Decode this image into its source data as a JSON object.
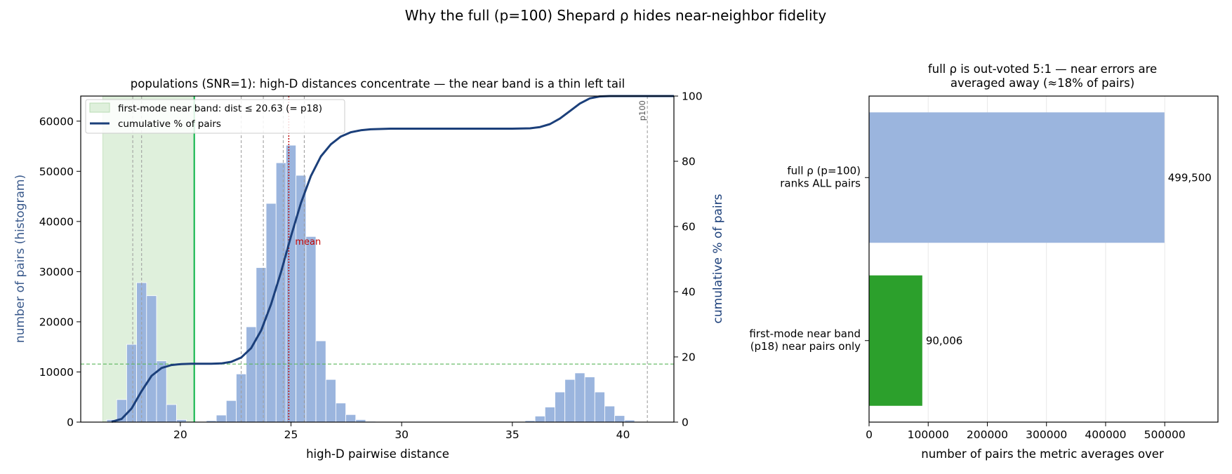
{
  "figure": {
    "suptitle": "Why the full (p=100) Shepard ρ hides near-neighbor fidelity"
  },
  "colors": {
    "hist": "#9bb5de",
    "cumulative": "#1b3f7a",
    "band_fill": "#dff0dc",
    "band_edge": "#1db954",
    "ref_line": "#5bb55b",
    "mean_line": "#c00000",
    "bar_full": "#9bb5de",
    "bar_near": "#2ca02c",
    "axis_label_left": "#3a5a8c"
  },
  "chart_data": [
    {
      "type": "bar",
      "subtype": "histogram_with_cumulative_line",
      "title": "populations (SNR=1): high-D distances concentrate — the near band is a thin left tail",
      "xlabel": "high-D pairwise distance",
      "ylabel": "number of pairs (histogram)",
      "y2label": "cumulative % of pairs",
      "xlim": [
        15.5,
        42.3
      ],
      "ylim": [
        0,
        65000
      ],
      "y2lim": [
        0,
        100
      ],
      "xticks": [
        20,
        25,
        30,
        35,
        40
      ],
      "yticks": [
        0,
        10000,
        20000,
        30000,
        40000,
        50000,
        60000
      ],
      "y2ticks": [
        0,
        20,
        40,
        60,
        80,
        100
      ],
      "bin_width": 0.45,
      "bins": [
        {
          "x": 16.9,
          "count": 500
        },
        {
          "x": 17.35,
          "count": 4500
        },
        {
          "x": 17.8,
          "count": 15500
        },
        {
          "x": 18.25,
          "count": 27800
        },
        {
          "x": 18.7,
          "count": 25200
        },
        {
          "x": 19.15,
          "count": 12200
        },
        {
          "x": 19.6,
          "count": 3500
        },
        {
          "x": 20.05,
          "count": 500
        },
        {
          "x": 21.4,
          "count": 300
        },
        {
          "x": 21.85,
          "count": 1400
        },
        {
          "x": 22.3,
          "count": 4300
        },
        {
          "x": 22.75,
          "count": 9600
        },
        {
          "x": 23.2,
          "count": 19000
        },
        {
          "x": 23.65,
          "count": 30800
        },
        {
          "x": 24.1,
          "count": 43600
        },
        {
          "x": 24.55,
          "count": 51700
        },
        {
          "x": 25.0,
          "count": 55200
        },
        {
          "x": 25.45,
          "count": 49200
        },
        {
          "x": 25.9,
          "count": 37000
        },
        {
          "x": 26.35,
          "count": 16200
        },
        {
          "x": 26.8,
          "count": 8500
        },
        {
          "x": 27.25,
          "count": 3800
        },
        {
          "x": 27.7,
          "count": 1500
        },
        {
          "x": 28.15,
          "count": 500
        },
        {
          "x": 28.6,
          "count": 150
        },
        {
          "x": 35.8,
          "count": 300
        },
        {
          "x": 36.25,
          "count": 1200
        },
        {
          "x": 36.7,
          "count": 3000
        },
        {
          "x": 37.15,
          "count": 6000
        },
        {
          "x": 37.6,
          "count": 8500
        },
        {
          "x": 38.05,
          "count": 9800
        },
        {
          "x": 38.5,
          "count": 9000
        },
        {
          "x": 38.95,
          "count": 6000
        },
        {
          "x": 39.4,
          "count": 3200
        },
        {
          "x": 39.85,
          "count": 1300
        },
        {
          "x": 40.3,
          "count": 400
        }
      ],
      "cumulative": {
        "x": [
          16.9,
          17.35,
          17.8,
          18.25,
          18.7,
          19.15,
          19.6,
          20.05,
          20.5,
          21.0,
          21.4,
          21.85,
          22.3,
          22.75,
          23.2,
          23.65,
          24.1,
          24.55,
          25.0,
          25.45,
          25.9,
          26.35,
          26.8,
          27.25,
          27.7,
          28.15,
          28.6,
          29.5,
          31.0,
          33.0,
          35.0,
          35.8,
          36.25,
          36.7,
          37.15,
          37.6,
          38.05,
          38.5,
          38.95,
          39.4,
          39.85,
          40.3,
          41.0,
          42.3
        ],
        "y": [
          0.1,
          1.0,
          4.2,
          9.5,
          14.2,
          16.6,
          17.5,
          17.8,
          17.9,
          17.9,
          17.9,
          18.0,
          18.5,
          19.8,
          22.7,
          28.1,
          36.2,
          46.0,
          57.0,
          67.2,
          75.5,
          81.5,
          85.2,
          87.6,
          88.9,
          89.5,
          89.8,
          90.0,
          90.0,
          90.0,
          90.0,
          90.1,
          90.5,
          91.4,
          93.1,
          95.4,
          97.7,
          99.3,
          99.9,
          100.0,
          100.0,
          100.0,
          100.0,
          100.0
        ]
      },
      "near_band": {
        "from": 16.5,
        "to": 20.63
      },
      "percentile_lines_x": [
        17.85,
        18.25,
        22.75,
        23.75,
        24.65,
        25.6,
        41.1
      ],
      "mean_x": 24.9,
      "mean_label": "mean",
      "p100_x": 41.1,
      "p100_label": "p100",
      "ref_hline_y2": 17.8,
      "legend": {
        "placement": "upper-left",
        "band_label": "first-mode near band: dist ≤ 20.63 (= p18)",
        "line_label": "cumulative % of pairs"
      }
    },
    {
      "type": "bar",
      "orientation": "horizontal",
      "title_line1": "full ρ is out-voted 5:1 — near errors are",
      "title_line2": "averaged away (≈18% of pairs)",
      "xlabel": "number of pairs the metric averages over",
      "xlim": [
        0,
        590000
      ],
      "xticks": [
        0,
        100000,
        200000,
        300000,
        400000,
        500000
      ],
      "categories": [
        {
          "line1": "full ρ (p=100)",
          "line2": "ranks ALL pairs"
        },
        {
          "line1": "first-mode near band",
          "line2": "(p18) near pairs only"
        }
      ],
      "values": [
        499500,
        90006
      ],
      "value_labels": [
        "499,500",
        "90,006"
      ]
    }
  ]
}
